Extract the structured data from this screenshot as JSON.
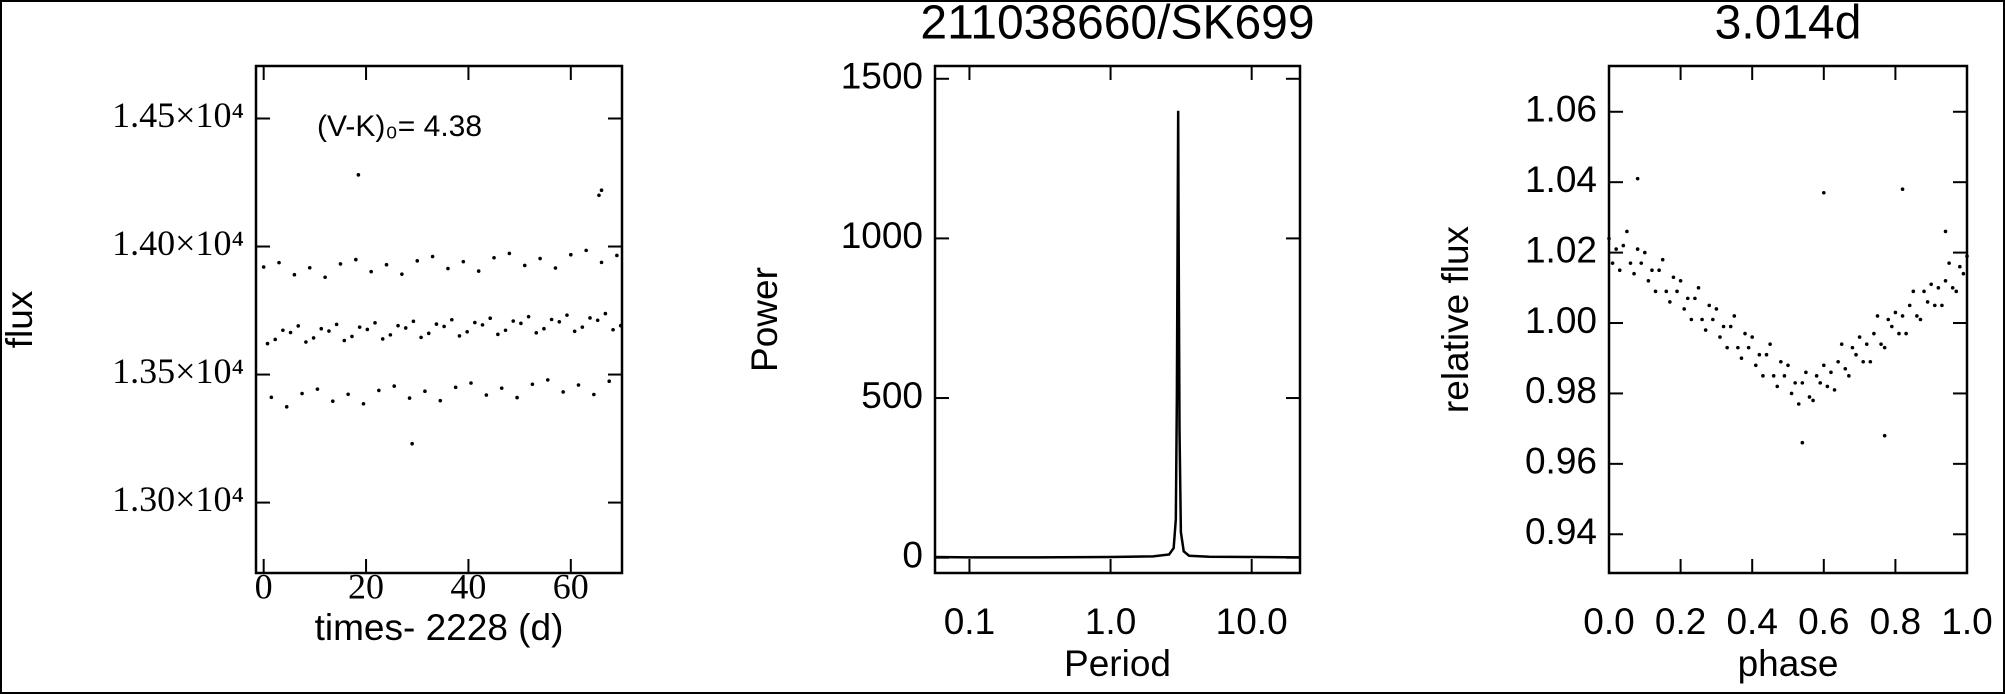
{
  "chart_data": [
    {
      "type": "scatter",
      "xlabel": "times- 2228 (d)",
      "ylabel": "flux",
      "annotation": "(V-K)₀= 4.38",
      "color": "#000000",
      "x": [
        0,
        0.75,
        1.5,
        2.25,
        3,
        3.75,
        4.5,
        5.25,
        6,
        6.75,
        7.5,
        8.25,
        9,
        9.75,
        10.5,
        11.25,
        12,
        12.75,
        13.5,
        14.25,
        15,
        15.75,
        16.5,
        17.25,
        18,
        18.75,
        19.5,
        20.25,
        21,
        21.75,
        22.5,
        23.25,
        24,
        24.75,
        25.5,
        26.25,
        27,
        27.75,
        28.5,
        29.25,
        30,
        30.75,
        31.5,
        32.25,
        33,
        33.75,
        34.5,
        35.25,
        36,
        36.75,
        37.5,
        38.25,
        39,
        39.75,
        40.5,
        41.25,
        42,
        42.75,
        43.5,
        44.25,
        45,
        45.75,
        46.5,
        47.25,
        48,
        48.75,
        49.5,
        50.25,
        51,
        51.75,
        52.5,
        53.25,
        54,
        54.75,
        55.5,
        56.25,
        57,
        57.75,
        58.5,
        59.25,
        60,
        60.75,
        61.5,
        62.25,
        63,
        63.75,
        64.5,
        65.25,
        66,
        66.75,
        67.5,
        68.25,
        69,
        69.75,
        18.5,
        29,
        66,
        65.5
      ],
      "values": [
        13920,
        13621,
        13411,
        13637,
        13937,
        13673,
        13374,
        13664,
        13890,
        13690,
        13426,
        13627,
        13917,
        13643,
        13443,
        13679,
        13880,
        13670,
        13396,
        13696,
        13932,
        13633,
        13423,
        13649,
        13949,
        13685,
        13386,
        13676,
        13902,
        13702,
        13438,
        13639,
        13929,
        13655,
        13455,
        13691,
        13892,
        13682,
        13408,
        13708,
        13944,
        13645,
        13435,
        13661,
        13961,
        13697,
        13398,
        13688,
        13914,
        13714,
        13450,
        13651,
        13941,
        13667,
        13467,
        13703,
        13904,
        13694,
        13420,
        13720,
        13956,
        13657,
        13447,
        13673,
        13973,
        13709,
        13410,
        13700,
        13926,
        13726,
        13462,
        13663,
        13953,
        13679,
        13479,
        13715,
        13916,
        13706,
        13432,
        13732,
        13968,
        13669,
        13459,
        13685,
        13985,
        13721,
        13422,
        13712,
        13938,
        13738,
        13474,
        13675,
        13965,
        13691,
        14280,
        13230,
        14220,
        14200
      ],
      "xlim": [
        -1.5,
        70
      ],
      "xticks": [
        0,
        20,
        40,
        60
      ],
      "ylim": [
        12725,
        14705
      ],
      "yticks": [
        {
          "value": 13000,
          "label": "1.30×10⁴"
        },
        {
          "value": 13500,
          "label": "1.35×10⁴"
        },
        {
          "value": 14000,
          "label": "1.40×10⁴"
        },
        {
          "value": 14500,
          "label": "1.45×10⁴"
        }
      ]
    },
    {
      "type": "line",
      "title": "211038660/SK699",
      "xlabel": "Period",
      "ylabel": "Power",
      "color": "#000000",
      "xlog": true,
      "x": [
        0.057,
        0.1,
        0.3,
        1,
        2,
        2.6,
        2.8,
        2.9,
        2.95,
        3.0,
        3.014,
        3.03,
        3.08,
        3.15,
        3.3,
        3.6,
        5,
        10,
        22
      ],
      "values": [
        2,
        1,
        1,
        2,
        4,
        10,
        30,
        120,
        500,
        1200,
        1400,
        1100,
        400,
        80,
        20,
        6,
        3,
        2,
        1
      ],
      "xlim": [
        0.057,
        22
      ],
      "xticks": [
        0.1,
        {
          "value": 1,
          "label": "1.0"
        },
        {
          "value": 10,
          "label": "10.0"
        }
      ],
      "ylim": [
        -48,
        1540
      ],
      "yticks": [
        0,
        500,
        1000,
        1500
      ]
    },
    {
      "type": "scatter",
      "title": "3.014d",
      "xlabel": "phase",
      "ylabel": "relative flux",
      "color": "#000000",
      "x": [
        0,
        0.01,
        0.02,
        0.03,
        0.04,
        0.05,
        0.06,
        0.07,
        0.08,
        0.09,
        0.1,
        0.11,
        0.12,
        0.13,
        0.14,
        0.15,
        0.16,
        0.17,
        0.18,
        0.19,
        0.2,
        0.21,
        0.22,
        0.23,
        0.24,
        0.25,
        0.26,
        0.27,
        0.28,
        0.29,
        0.3,
        0.31,
        0.32,
        0.33,
        0.34,
        0.35,
        0.36,
        0.37,
        0.38,
        0.39,
        0.4,
        0.41,
        0.42,
        0.43,
        0.44,
        0.45,
        0.46,
        0.47,
        0.48,
        0.49,
        0.5,
        0.51,
        0.52,
        0.53,
        0.54,
        0.55,
        0.56,
        0.57,
        0.58,
        0.59,
        0.6,
        0.61,
        0.62,
        0.63,
        0.64,
        0.65,
        0.66,
        0.67,
        0.68,
        0.69,
        0.7,
        0.71,
        0.72,
        0.73,
        0.74,
        0.75,
        0.76,
        0.77,
        0.78,
        0.79,
        0.8,
        0.81,
        0.82,
        0.83,
        0.84,
        0.85,
        0.86,
        0.87,
        0.88,
        0.89,
        0.9,
        0.91,
        0.92,
        0.93,
        0.94,
        0.95,
        0.96,
        0.97,
        0.98,
        0.99,
        1,
        0.08,
        0.6,
        0.82,
        0.94,
        0.77,
        0.54
      ],
      "values": [
        1.024,
        1.017,
        1.021,
        1.015,
        1.022,
        1.026,
        1.017,
        1.014,
        1.021,
        1.017,
        1.02,
        1.012,
        1.015,
        1.009,
        1.015,
        1.018,
        1.009,
        1.006,
        1.013,
        1.009,
        1.012,
        1.004,
        1.007,
        1.001,
        1.007,
        1.01,
        1.001,
        0.998,
        1.005,
        1.001,
        1.004,
        0.996,
        0.999,
        0.993,
        0.999,
        1.002,
        0.993,
        0.99,
        0.997,
        0.993,
        0.996,
        0.988,
        0.991,
        0.985,
        0.991,
        0.994,
        0.985,
        0.982,
        0.989,
        0.985,
        0.988,
        0.98,
        0.983,
        0.977,
        0.983,
        0.986,
        0.979,
        0.978,
        0.985,
        0.983,
        0.988,
        0.982,
        0.986,
        0.981,
        0.989,
        0.994,
        0.987,
        0.985,
        0.993,
        0.991,
        0.996,
        0.989,
        0.994,
        0.989,
        0.997,
        1.002,
        0.994,
        0.993,
        1.001,
        0.999,
        1.003,
        0.997,
        1.002,
        0.997,
        1.005,
        1.009,
        1.002,
        1.001,
        1.009,
        1.006,
        1.011,
        1.005,
        1.01,
        1.005,
        1.012,
        1.017,
        1.01,
        1.009,
        1.016,
        1.014,
        1.019,
        1.041,
        1.037,
        1.038,
        1.026,
        0.968,
        0.966
      ],
      "xlim": [
        0,
        1
      ],
      "xticks": [
        {
          "value": 0,
          "label": "0.0"
        },
        0.2,
        0.4,
        0.6,
        0.8,
        {
          "value": 1,
          "label": "1.0"
        }
      ],
      "ylim": [
        0.929,
        1.073
      ],
      "yticks": [
        0.94,
        0.96,
        0.98,
        {
          "value": 1,
          "label": "1.00"
        },
        1.02,
        1.04,
        1.06
      ]
    }
  ]
}
